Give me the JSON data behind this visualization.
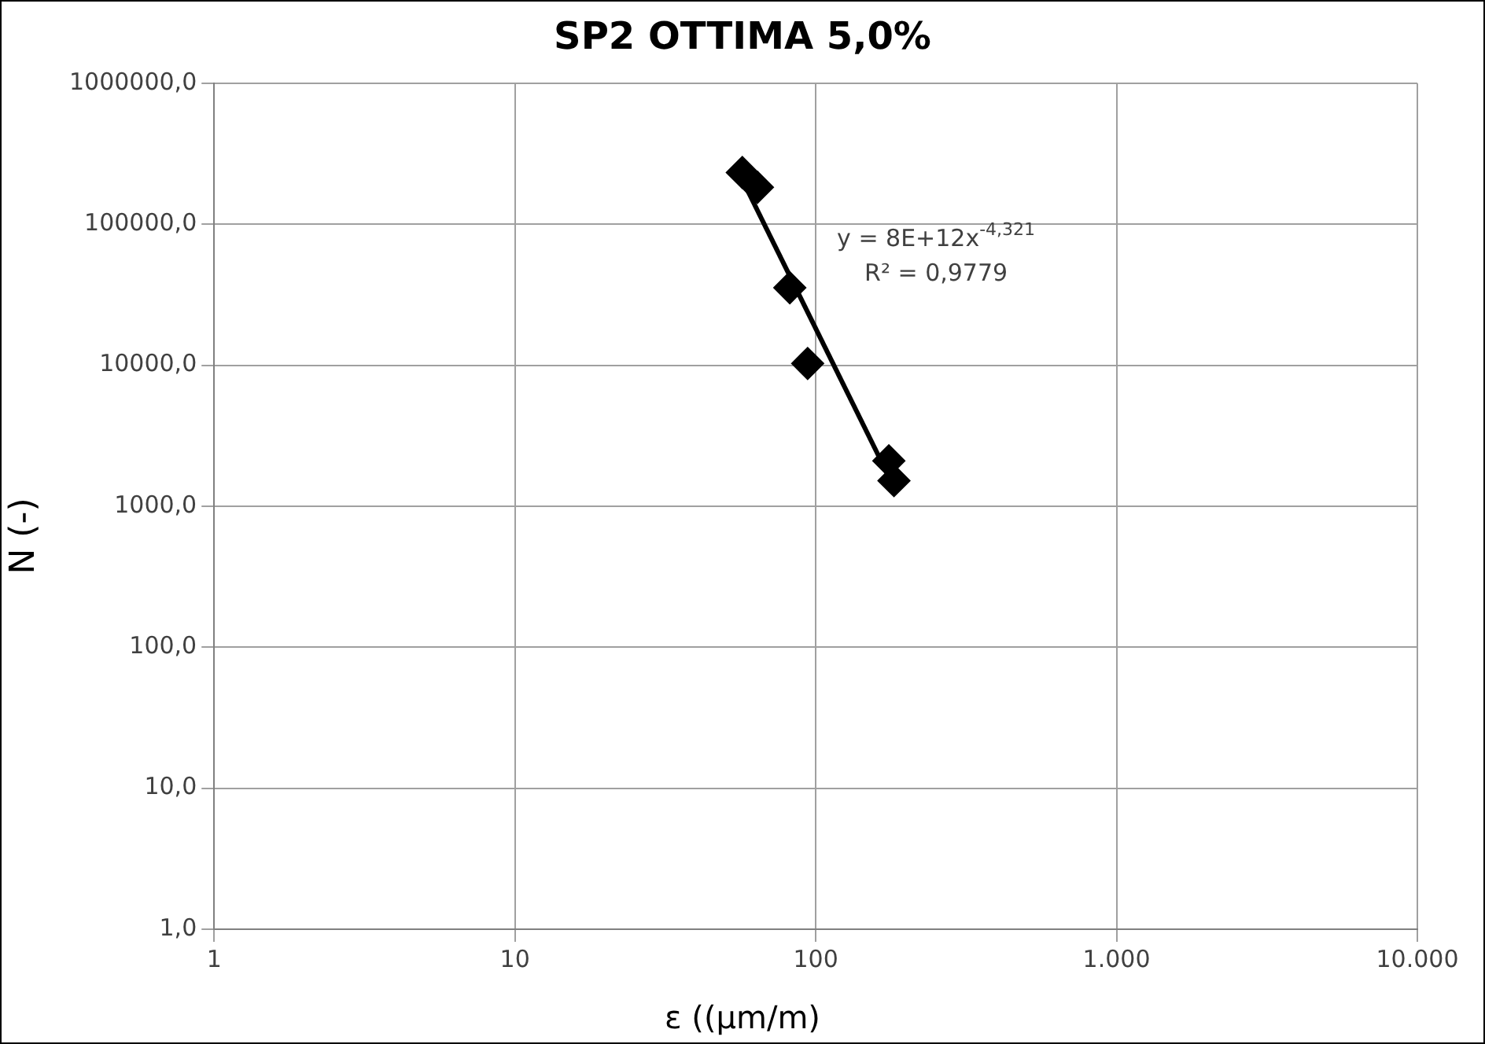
{
  "chart_data": {
    "type": "scatter",
    "title": "SP2 OTTIMA 5,0%",
    "xlabel": "ε ((µm/m)",
    "ylabel": "N (-)",
    "log": "xy",
    "grid": true,
    "legend": false,
    "marker": "diamond",
    "xlim": [
      1,
      10000
    ],
    "xticks": [
      1,
      10,
      100,
      {
        "value": 1000,
        "label": "1.000"
      },
      {
        "value": 10000,
        "label": "10.000"
      }
    ],
    "ylim": [
      1,
      1000000
    ],
    "yticks": [
      {
        "value": 1,
        "label": "1,0"
      },
      {
        "value": 10,
        "label": "10,0"
      },
      {
        "value": 100,
        "label": "100,0"
      },
      {
        "value": 1000,
        "label": "1000,0"
      },
      {
        "value": 10000,
        "label": "10000,0"
      },
      {
        "value": 100000,
        "label": "100000,0"
      },
      {
        "value": 1000000,
        "label": "1000000,0"
      }
    ],
    "series": [
      {
        "type": "scatter",
        "color": "#000000",
        "x": [
          57,
          64,
          82,
          94,
          175,
          182
        ],
        "values": [
          233000,
          183000,
          35500,
          10300,
          2100,
          1520
        ]
      },
      {
        "type": "line",
        "color": "#000000",
        "marker": "none",
        "x": [
          57,
          182
        ],
        "values": [
          207000,
          1370
        ]
      }
    ],
    "annotations": [
      "y = 8E+12x$^{-4,321}$",
      "R² = 0,9779"
    ]
  }
}
